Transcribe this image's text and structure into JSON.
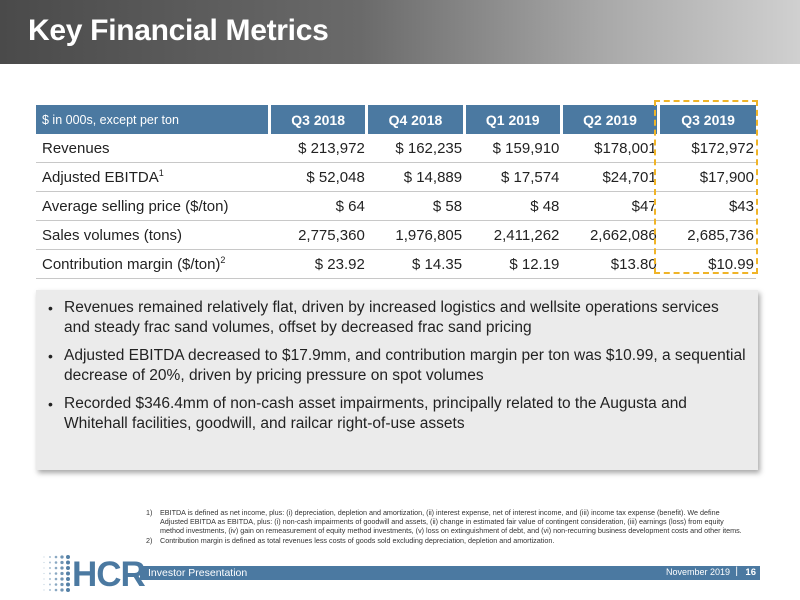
{
  "slide": {
    "title": "Key Financial Metrics"
  },
  "table": {
    "units_label": "$ in 000s, except per ton",
    "columns": [
      "Q3 2018",
      "Q4 2018",
      "Q1 2019",
      "Q2 2019",
      "Q3 2019"
    ],
    "highlighted_column": "Q3 2019",
    "rows": [
      {
        "label": "Revenues",
        "sup": "",
        "values": [
          "$ 213,972",
          "$ 162,235",
          "$ 159,910",
          "$178,001",
          "$172,972"
        ]
      },
      {
        "label": "Adjusted EBITDA",
        "sup": "1",
        "values": [
          "$ 52,048",
          "$ 14,889",
          "$ 17,574",
          "$24,701",
          "$17,900"
        ]
      },
      {
        "label": "Average selling price ($/ton)",
        "sup": "",
        "values": [
          "$ 64",
          "$ 58",
          "$ 48",
          "$47",
          "$43"
        ]
      },
      {
        "label": "Sales volumes (tons)",
        "sup": "",
        "values": [
          "2,775,360",
          "1,976,805",
          "2,411,262",
          "2,662,086",
          "2,685,736"
        ]
      },
      {
        "label": "Contribution margin ($/ton)",
        "sup": "2",
        "values": [
          "$ 23.92",
          "$ 14.35",
          "$ 12.19",
          "$13.80",
          "$10.99"
        ]
      }
    ]
  },
  "bullets": [
    "Revenues remained relatively flat, driven by increased logistics and wellsite operations services and steady frac sand volumes, offset by decreased frac sand pricing",
    "Adjusted EBITDA decreased to $17.9mm, and contribution margin per ton was $10.99, a sequential decrease of 20%, driven by pricing pressure on spot volumes",
    "Recorded $346.4mm of non-cash asset impairments, principally related to the Augusta and Whitehall facilities, goodwill, and railcar right-of-use assets"
  ],
  "footnotes": [
    {
      "num": "1)",
      "text": "EBITDA is defined as net income, plus: (i) depreciation, depletion and amortization, (ii) interest expense, net of interest income, and (iii) income tax expense (benefit). We define Adjusted EBITDA as EBITDA, plus: (i) non-cash impairments of goodwill and assets, (ii) change in estimated fair value of contingent consideration, (iii) earnings (loss) from equity method investments, (iv) gain on remeasurement of equity method investments, (v) loss on extinguishment of debt, and (vi) non-recurring business development costs and other items."
    },
    {
      "num": "2)",
      "text": "Contribution margin is defined as total revenues less costs of goods sold excluding depreciation, depletion and amortization."
    }
  ],
  "footer": {
    "logo_text": "HCR",
    "logo_mark": "®",
    "left": "Investor Presentation",
    "date": "November 2019",
    "separator": "|",
    "page": "16"
  },
  "colors": {
    "accent_blue": "#4b79a1",
    "highlight_gold": "#f0b428",
    "bullet_box_bg": "#ebebeb"
  }
}
